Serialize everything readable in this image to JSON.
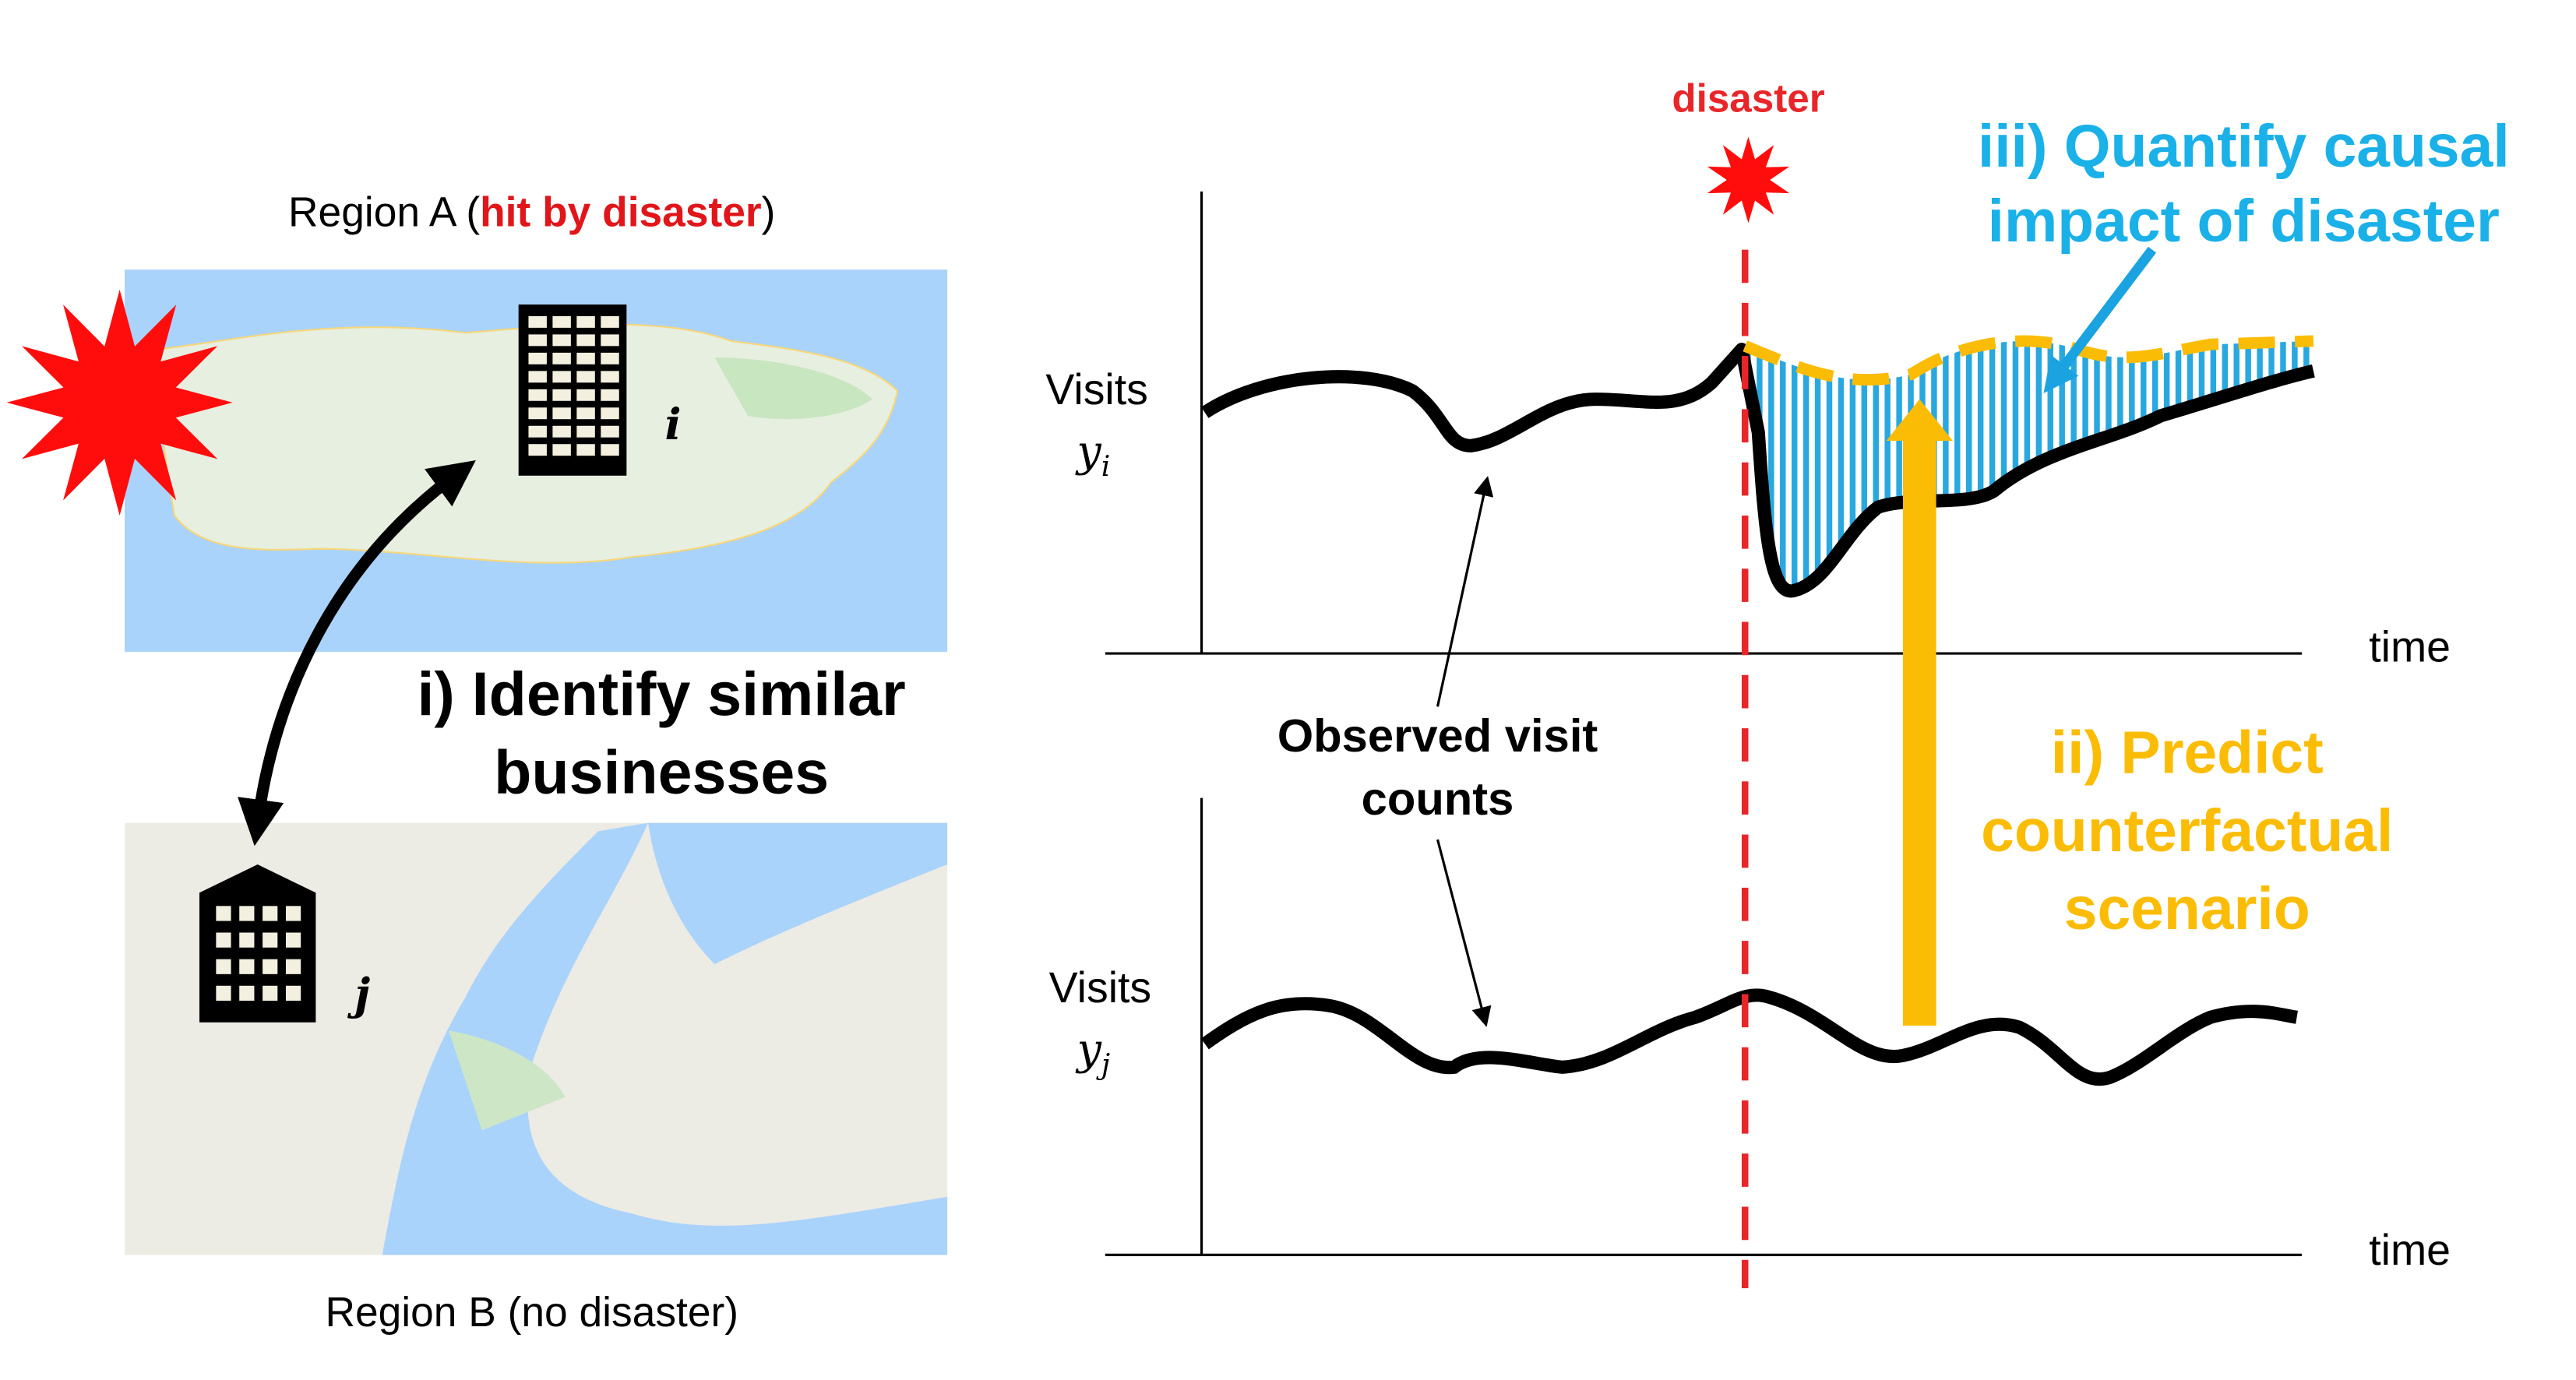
{
  "region_a": {
    "prefix": "Region A (",
    "highlight": "hit by disaster",
    "suffix": ")"
  },
  "region_b": "Region B (no disaster)",
  "building_labels": [
    "i",
    "j"
  ],
  "step_1": [
    "i) Identify similar",
    "businesses"
  ],
  "step_2": [
    "ii) Predict",
    "counterfactual",
    "scenario"
  ],
  "step_3": [
    "iii) Quantify causal",
    "impact of disaster"
  ],
  "event_label": "disaster",
  "observed_label": [
    "Observed visit",
    "counts"
  ],
  "plots": [
    {
      "y_label": "Visits",
      "y_symbol": "y",
      "y_sub": "i",
      "x_label": "time"
    },
    {
      "y_label": "Visits",
      "y_symbol": "y",
      "y_sub": "j",
      "x_label": "time"
    }
  ]
}
